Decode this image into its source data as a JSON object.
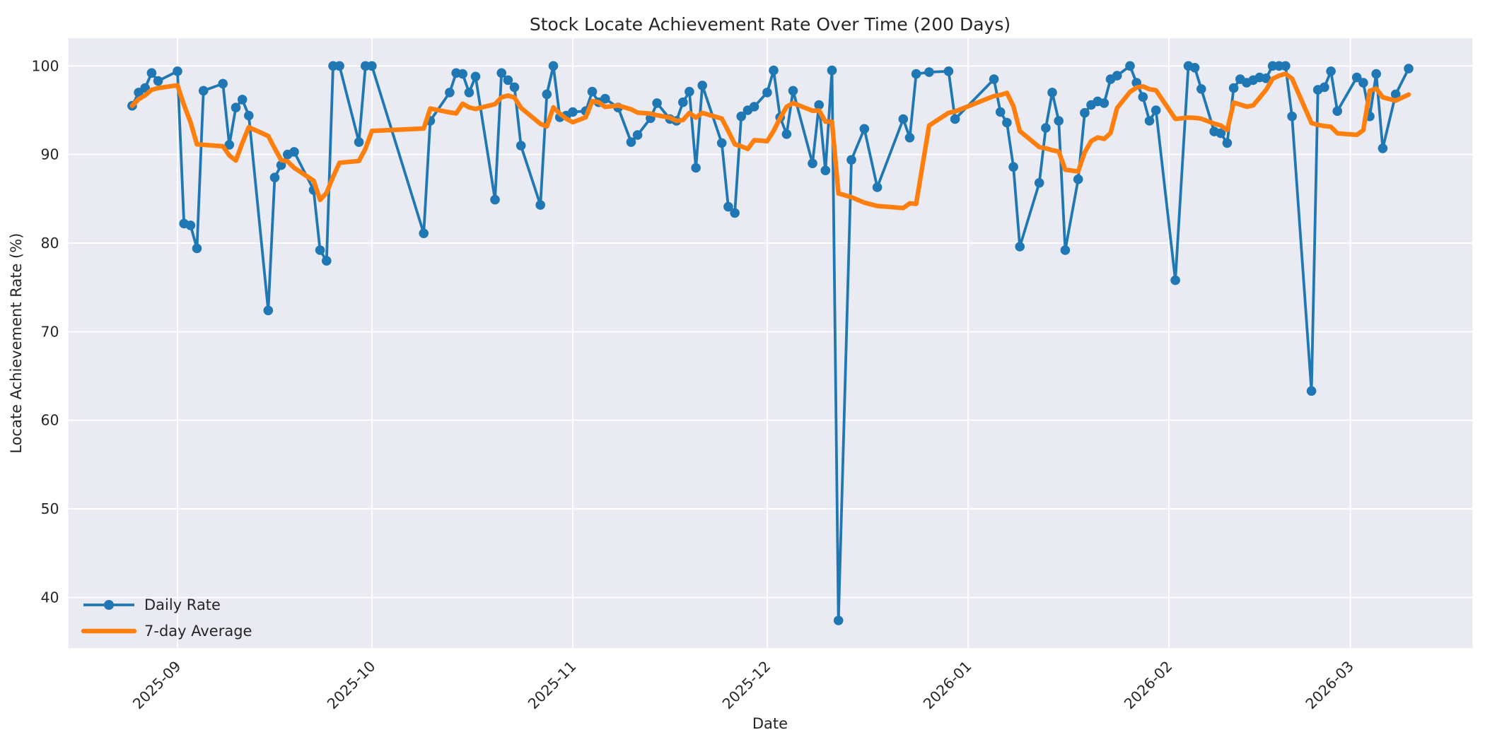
{
  "figure": {
    "title": "Stock Locate Achievement Rate Over Time (200 Days)",
    "background_color": "#ffffff",
    "plot_background_color": "#eaeaf2",
    "gridline_color": "#ffffff",
    "text_color": "#262626"
  },
  "chart_data": {
    "type": "line",
    "title": "Stock Locate Achievement Rate Over Time (200 Days)",
    "xlabel": "Date",
    "ylabel": "Locate Achievement Rate (%)",
    "grid": true,
    "legend_position": "lower left",
    "x_axis_start_date": "2025-08-25",
    "x_tick_labels": [
      "2025-09",
      "2025-10",
      "2025-11",
      "2025-12",
      "2026-01",
      "2026-02",
      "2026-03"
    ],
    "x_tick_day_offsets": [
      7,
      37,
      68,
      98,
      129,
      160,
      188
    ],
    "y_ticks": [
      40,
      50,
      60,
      70,
      80,
      90,
      100
    ],
    "ylim": [
      34.3,
      103.1
    ],
    "series": [
      {
        "name": "Daily Rate",
        "color": "#1f77b4",
        "style": "line+markers",
        "points": [
          [
            0,
            95.5
          ],
          [
            1,
            97.0
          ],
          [
            2,
            97.5
          ],
          [
            3,
            99.2
          ],
          [
            4,
            98.3
          ],
          [
            7,
            99.4
          ],
          [
            8,
            82.2
          ],
          [
            9,
            82.0
          ],
          [
            10,
            79.4
          ],
          [
            11,
            97.2
          ],
          [
            14,
            98.0
          ],
          [
            15,
            91.1
          ],
          [
            16,
            95.3
          ],
          [
            17,
            96.2
          ],
          [
            18,
            94.4
          ],
          [
            21,
            72.4
          ],
          [
            22,
            87.4
          ],
          [
            23,
            88.8
          ],
          [
            24,
            90.0
          ],
          [
            25,
            90.3
          ],
          [
            28,
            86.0
          ],
          [
            29,
            79.2
          ],
          [
            30,
            78.0
          ],
          [
            31,
            100.0
          ],
          [
            32,
            100.0
          ],
          [
            35,
            91.4
          ],
          [
            36,
            100.0
          ],
          [
            37,
            100.0
          ],
          [
            45,
            81.1
          ],
          [
            46,
            93.8
          ],
          [
            49,
            97.0
          ],
          [
            50,
            99.2
          ],
          [
            51,
            99.1
          ],
          [
            52,
            97.0
          ],
          [
            53,
            98.8
          ],
          [
            56,
            84.9
          ],
          [
            57,
            99.2
          ],
          [
            58,
            98.4
          ],
          [
            59,
            97.6
          ],
          [
            60,
            91.0
          ],
          [
            63,
            84.3
          ],
          [
            64,
            96.8
          ],
          [
            65,
            100.0
          ],
          [
            66,
            94.2
          ],
          [
            67,
            94.4
          ],
          [
            68,
            94.8
          ],
          [
            70,
            94.9
          ],
          [
            71,
            97.1
          ],
          [
            72,
            95.9
          ],
          [
            73,
            96.3
          ],
          [
            75,
            95.3
          ],
          [
            77,
            91.4
          ],
          [
            78,
            92.2
          ],
          [
            80,
            94.1
          ],
          [
            81,
            95.8
          ],
          [
            83,
            94.0
          ],
          [
            84,
            93.8
          ],
          [
            85,
            95.9
          ],
          [
            86,
            97.1
          ],
          [
            87,
            88.5
          ],
          [
            88,
            97.8
          ],
          [
            91,
            91.3
          ],
          [
            92,
            84.1
          ],
          [
            93,
            83.4
          ],
          [
            94,
            94.3
          ],
          [
            95,
            95.0
          ],
          [
            96,
            95.4
          ],
          [
            98,
            97.0
          ],
          [
            99,
            99.5
          ],
          [
            100,
            94.2
          ],
          [
            101,
            92.3
          ],
          [
            102,
            97.2
          ],
          [
            105,
            89.0
          ],
          [
            106,
            95.6
          ],
          [
            107,
            88.2
          ],
          [
            108,
            99.5
          ],
          [
            109,
            37.4
          ],
          [
            111,
            89.4
          ],
          [
            113,
            92.9
          ],
          [
            115,
            86.3
          ],
          [
            119,
            94.0
          ],
          [
            120,
            91.9
          ],
          [
            121,
            99.1
          ],
          [
            123,
            99.3
          ],
          [
            126,
            99.4
          ],
          [
            127,
            94.0
          ],
          [
            133,
            98.5
          ],
          [
            134,
            94.8
          ],
          [
            135,
            93.6
          ],
          [
            136,
            88.6
          ],
          [
            137,
            79.6
          ],
          [
            140,
            86.8
          ],
          [
            141,
            93.0
          ],
          [
            142,
            97.0
          ],
          [
            143,
            93.8
          ],
          [
            144,
            79.2
          ],
          [
            146,
            87.2
          ],
          [
            147,
            94.7
          ],
          [
            148,
            95.6
          ],
          [
            149,
            96.0
          ],
          [
            150,
            95.8
          ],
          [
            151,
            98.5
          ],
          [
            152,
            98.9
          ],
          [
            154,
            100.0
          ],
          [
            155,
            98.1
          ],
          [
            156,
            96.5
          ],
          [
            157,
            93.8
          ],
          [
            158,
            95.0
          ],
          [
            161,
            75.8
          ],
          [
            163,
            100.0
          ],
          [
            164,
            99.8
          ],
          [
            165,
            97.4
          ],
          [
            167,
            92.6
          ],
          [
            168,
            92.4
          ],
          [
            169,
            91.3
          ],
          [
            170,
            97.5
          ],
          [
            171,
            98.5
          ],
          [
            172,
            98.1
          ],
          [
            173,
            98.4
          ],
          [
            174,
            98.7
          ],
          [
            175,
            98.6
          ],
          [
            176,
            100.0
          ],
          [
            177,
            100.0
          ],
          [
            178,
            100.0
          ],
          [
            179,
            94.3
          ],
          [
            182,
            63.3
          ],
          [
            183,
            97.3
          ],
          [
            184,
            97.6
          ],
          [
            185,
            99.4
          ],
          [
            186,
            94.9
          ],
          [
            189,
            98.7
          ],
          [
            190,
            98.1
          ],
          [
            191,
            94.3
          ],
          [
            192,
            99.1
          ],
          [
            193,
            90.7
          ],
          [
            195,
            96.8
          ],
          [
            197,
            99.7
          ]
        ]
      },
      {
        "name": "7-day Average",
        "color": "#ff7f0e",
        "style": "line",
        "derived": "rolling mean over last 7 data points (min_periods=1) of Daily Rate"
      }
    ]
  },
  "legend": {
    "items": [
      {
        "label": "Daily Rate",
        "color": "#1f77b4",
        "marker": "circle"
      },
      {
        "label": "7-day Average",
        "color": "#ff7f0e",
        "marker": "line"
      }
    ]
  }
}
